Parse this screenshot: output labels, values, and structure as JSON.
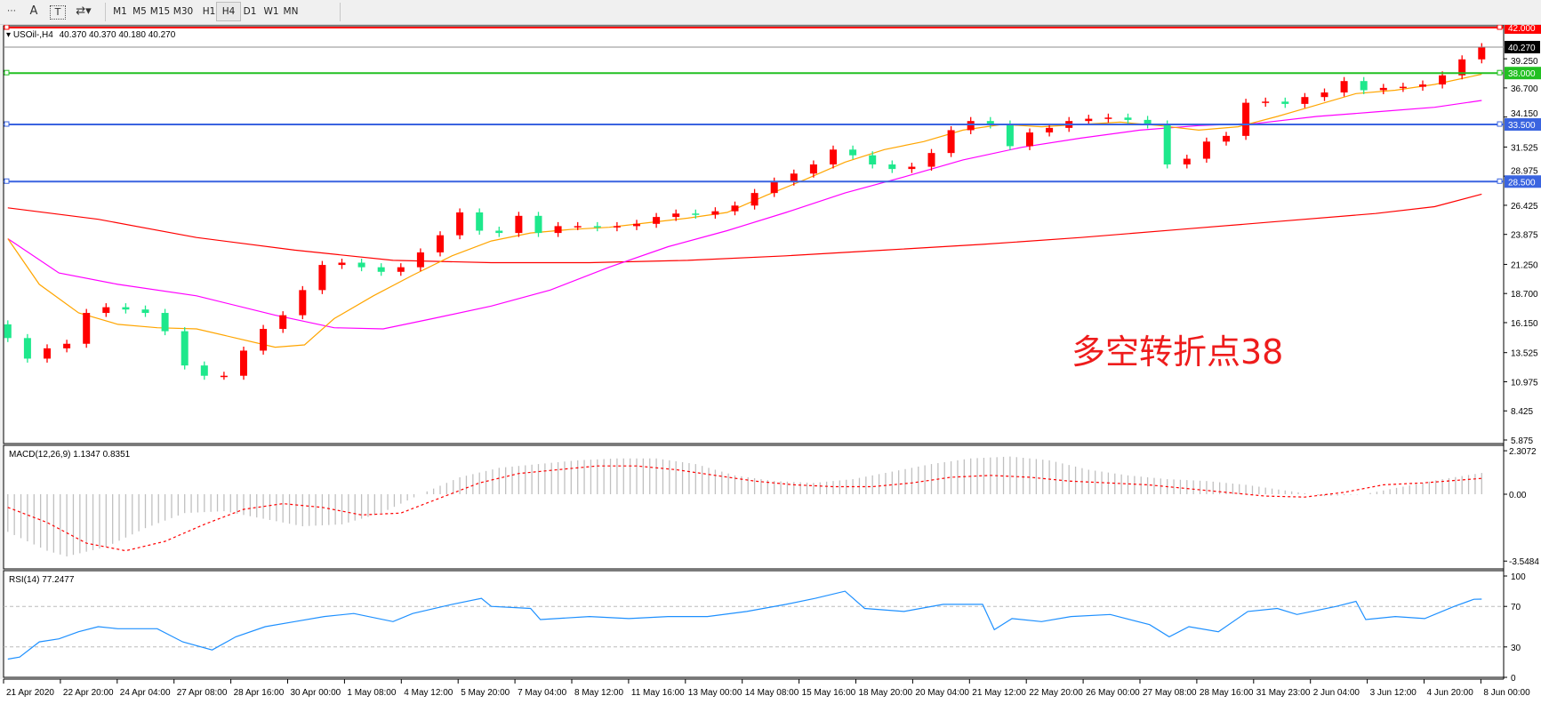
{
  "toolbar": {
    "icons": [
      "grid-lines-icon",
      "text-A-icon",
      "text-label-icon",
      "arrows-icon"
    ],
    "timeframes": [
      "M1",
      "M5",
      "M15",
      "M30",
      "H1",
      "H4",
      "D1",
      "W1",
      "MN"
    ],
    "active_timeframe": "H4"
  },
  "header": {
    "symbol_label": "USOil-,H4",
    "ohlc": "40.370 40.370 40.180 40.270"
  },
  "annotation": {
    "text": "多空转折点38",
    "color": "#ee1c1c"
  },
  "colors": {
    "bull": "#ff0000",
    "bear": "#1ee88c",
    "ma_fast": "#ffa500",
    "ma_mid": "#ff00ff",
    "ma_slow": "#ff0000",
    "rsi": "#1e90ff",
    "macd_hist": "#c0c0c0",
    "macd_signal": "#ff0000"
  },
  "price_axis": {
    "ticks": [
      "39.250",
      "36.700",
      "34.150",
      "31.525",
      "28.975",
      "26.425",
      "23.875",
      "21.250",
      "18.700",
      "16.150",
      "13.525",
      "10.975",
      "8.425",
      "5.875"
    ],
    "current_price": "40.270"
  },
  "levels": [
    {
      "price": 42.0,
      "label": "42.000",
      "color": "#ff0000"
    },
    {
      "price": 38.0,
      "label": "38.000",
      "color": "#22c022"
    },
    {
      "price": 33.5,
      "label": "33.500",
      "color": "#3a64e0"
    },
    {
      "price": 28.5,
      "label": "28.500",
      "color": "#3a64e0"
    }
  ],
  "macd": {
    "label": "MACD(12,26,9) 1.1347 0.8351",
    "ticks": [
      "2.3072",
      "0.00",
      "-3.5484"
    ]
  },
  "rsi": {
    "label": "RSI(14) 77.2477",
    "ticks": [
      "100",
      "70",
      "30",
      "0"
    ],
    "levels": [
      70,
      30
    ]
  },
  "time_axis": [
    "21 Apr 2020",
    "22 Apr 20:00",
    "24 Apr 04:00",
    "27 Apr 08:00",
    "28 Apr 16:00",
    "30 Apr 00:00",
    "1 May 08:00",
    "4 May 12:00",
    "5 May 20:00",
    "7 May 04:00",
    "8 May 12:00",
    "11 May 16:00",
    "13 May 00:00",
    "14 May 08:00",
    "15 May 16:00",
    "18 May 20:00",
    "20 May 04:00",
    "21 May 12:00",
    "22 May 20:00",
    "26 May 00:00",
    "27 May 08:00",
    "28 May 16:00",
    "31 May 23:00",
    "2 Jun 04:00",
    "3 Jun 12:00",
    "4 Jun 20:00",
    "8 Jun 00:00"
  ],
  "chart_data": {
    "type": "candlestick",
    "close": [
      14.8,
      13.0,
      13.9,
      14.3,
      17.0,
      17.5,
      17.3,
      17.0,
      15.4,
      12.4,
      11.5,
      11.5,
      13.7,
      15.6,
      16.8,
      19.0,
      21.2,
      21.4,
      21.0,
      20.6,
      21.0,
      22.3,
      23.8,
      25.8,
      24.2,
      24.0,
      25.5,
      24.0,
      24.6,
      24.6,
      24.5,
      24.6,
      24.8,
      25.4,
      25.7,
      25.6,
      25.9,
      26.4,
      27.5,
      28.5,
      29.2,
      30.0,
      31.3,
      30.8,
      30.0,
      29.6,
      29.8,
      31.0,
      33.0,
      33.8,
      33.5,
      31.6,
      32.8,
      33.2,
      33.8,
      34.0,
      34.1,
      33.9,
      33.5,
      30.0,
      30.5,
      32.0,
      32.5,
      35.4,
      35.5,
      35.3,
      35.9,
      36.3,
      37.3,
      36.5,
      36.7,
      36.8,
      37.0,
      37.8,
      39.2,
      40.27
    ],
    "ma_fast": [
      [
        0,
        23.5
      ],
      [
        1.6,
        19.5
      ],
      [
        3.6,
        17
      ],
      [
        5.6,
        16
      ],
      [
        7.6,
        15.7
      ],
      [
        9.6,
        15.6
      ],
      [
        11.6,
        14.8
      ],
      [
        13.6,
        14.0
      ],
      [
        15.1,
        14.2
      ],
      [
        16.6,
        16.5
      ],
      [
        18.6,
        18.5
      ],
      [
        20.6,
        20.3
      ],
      [
        22.6,
        22.0
      ],
      [
        24.6,
        23.3
      ],
      [
        26.6,
        24.0
      ],
      [
        28.6,
        24.3
      ],
      [
        30.6,
        24.5
      ],
      [
        32.6,
        24.9
      ],
      [
        34.6,
        25.3
      ],
      [
        36.6,
        25.8
      ],
      [
        38.6,
        27.3
      ],
      [
        40.6,
        28.7
      ],
      [
        42.6,
        30.2
      ],
      [
        44.6,
        31.3
      ],
      [
        46.6,
        32.0
      ],
      [
        48.6,
        33.0
      ],
      [
        50.6,
        33.5
      ],
      [
        52.6,
        33.3
      ],
      [
        54.6,
        33.5
      ],
      [
        56.6,
        33.7
      ],
      [
        58.6,
        33.4
      ],
      [
        60.6,
        33.0
      ],
      [
        62.6,
        33.3
      ],
      [
        64.6,
        34.2
      ],
      [
        66.6,
        35.2
      ],
      [
        68.6,
        36.2
      ],
      [
        70.6,
        36.5
      ],
      [
        72.6,
        37.0
      ],
      [
        75,
        37.9
      ]
    ],
    "ma_mid": [
      [
        0,
        23.5
      ],
      [
        2.6,
        20.5
      ],
      [
        5.6,
        19.5
      ],
      [
        9.6,
        18.5
      ],
      [
        13.6,
        16.8
      ],
      [
        16.6,
        15.7
      ],
      [
        19.1,
        15.6
      ],
      [
        21.6,
        16.5
      ],
      [
        24.6,
        17.6
      ],
      [
        27.6,
        19.0
      ],
      [
        30.6,
        21.0
      ],
      [
        33.6,
        22.8
      ],
      [
        36.6,
        24.2
      ],
      [
        39.6,
        25.8
      ],
      [
        42.6,
        27.5
      ],
      [
        45.6,
        28.9
      ],
      [
        48.6,
        30.4
      ],
      [
        51.6,
        31.5
      ],
      [
        54.6,
        32.3
      ],
      [
        57.6,
        33.0
      ],
      [
        60.6,
        33.4
      ],
      [
        63.6,
        33.6
      ],
      [
        66.6,
        34.2
      ],
      [
        69.6,
        34.6
      ],
      [
        72.6,
        35.0
      ],
      [
        75,
        35.6
      ]
    ],
    "ma_slow": [
      [
        0,
        26.2
      ],
      [
        4.6,
        25.2
      ],
      [
        9.6,
        23.6
      ],
      [
        14.6,
        22.5
      ],
      [
        19.6,
        21.6
      ],
      [
        24.6,
        21.4
      ],
      [
        29.6,
        21.4
      ],
      [
        34.6,
        21.6
      ],
      [
        39.6,
        22.0
      ],
      [
        44.6,
        22.5
      ],
      [
        49.6,
        23.0
      ],
      [
        54.6,
        23.6
      ],
      [
        59.6,
        24.3
      ],
      [
        64.6,
        25.0
      ],
      [
        69.6,
        25.7
      ],
      [
        72.6,
        26.3
      ],
      [
        75,
        27.4
      ]
    ],
    "macd_hist": [
      [
        0,
        -2.0
      ],
      [
        2,
        -3.0
      ],
      [
        3,
        -3.3
      ],
      [
        5,
        -2.8
      ],
      [
        7,
        -1.8
      ],
      [
        9,
        -1.0
      ],
      [
        11,
        -0.9
      ],
      [
        13,
        -1.3
      ],
      [
        15,
        -1.7
      ],
      [
        17,
        -1.6
      ],
      [
        19,
        -1.0
      ],
      [
        21,
        0.0
      ],
      [
        23,
        0.9
      ],
      [
        25,
        1.4
      ],
      [
        27,
        1.6
      ],
      [
        29,
        1.8
      ],
      [
        31,
        1.9
      ],
      [
        33,
        1.9
      ],
      [
        35,
        1.6
      ],
      [
        37,
        1.0
      ],
      [
        39,
        0.7
      ],
      [
        41,
        0.6
      ],
      [
        43,
        0.8
      ],
      [
        45,
        1.2
      ],
      [
        47,
        1.6
      ],
      [
        49,
        1.9
      ],
      [
        51,
        2.0
      ],
      [
        53,
        1.8
      ],
      [
        55,
        1.3
      ],
      [
        57,
        1.0
      ],
      [
        59,
        0.8
      ],
      [
        61,
        0.7
      ],
      [
        63,
        0.5
      ],
      [
        65,
        0.2
      ],
      [
        67,
        -0.1
      ],
      [
        69,
        0.0
      ],
      [
        71,
        0.4
      ],
      [
        73,
        0.8
      ],
      [
        75,
        1.13
      ]
    ],
    "macd_signal": [
      [
        0,
        -0.7
      ],
      [
        2,
        -1.5
      ],
      [
        4,
        -2.6
      ],
      [
        6,
        -3.0
      ],
      [
        8,
        -2.5
      ],
      [
        10,
        -1.6
      ],
      [
        12,
        -0.8
      ],
      [
        14,
        -0.5
      ],
      [
        16,
        -0.7
      ],
      [
        18,
        -1.1
      ],
      [
        20,
        -1.0
      ],
      [
        22,
        -0.2
      ],
      [
        24,
        0.6
      ],
      [
        26,
        1.1
      ],
      [
        28,
        1.3
      ],
      [
        30,
        1.5
      ],
      [
        32,
        1.5
      ],
      [
        34,
        1.3
      ],
      [
        36,
        1.0
      ],
      [
        38,
        0.7
      ],
      [
        40,
        0.5
      ],
      [
        42,
        0.4
      ],
      [
        44,
        0.4
      ],
      [
        46,
        0.6
      ],
      [
        48,
        0.9
      ],
      [
        50,
        1.0
      ],
      [
        52,
        0.9
      ],
      [
        54,
        0.7
      ],
      [
        56,
        0.6
      ],
      [
        58,
        0.5
      ],
      [
        60,
        0.3
      ],
      [
        62,
        0.1
      ],
      [
        64,
        -0.1
      ],
      [
        66,
        -0.15
      ],
      [
        68,
        0.1
      ],
      [
        70,
        0.5
      ],
      [
        72,
        0.6
      ],
      [
        75,
        0.84
      ]
    ],
    "rsi": [
      [
        0,
        18
      ],
      [
        0.6,
        20
      ],
      [
        1.6,
        35
      ],
      [
        2.6,
        38
      ],
      [
        3.6,
        45
      ],
      [
        4.6,
        50
      ],
      [
        5.6,
        48
      ],
      [
        7.6,
        48
      ],
      [
        8.9,
        35
      ],
      [
        10.4,
        27
      ],
      [
        11.6,
        40
      ],
      [
        13.1,
        50
      ],
      [
        14.6,
        55
      ],
      [
        16.1,
        60
      ],
      [
        17.6,
        63
      ],
      [
        19.6,
        55
      ],
      [
        20.6,
        63
      ],
      [
        22.6,
        72
      ],
      [
        24.1,
        78
      ],
      [
        24.6,
        70
      ],
      [
        26.6,
        68
      ],
      [
        27.1,
        57
      ],
      [
        29.6,
        60
      ],
      [
        31.6,
        58
      ],
      [
        33.6,
        60
      ],
      [
        35.6,
        60
      ],
      [
        37.6,
        65
      ],
      [
        39.6,
        72
      ],
      [
        41.1,
        78
      ],
      [
        42.6,
        85
      ],
      [
        43.6,
        68
      ],
      [
        45.6,
        65
      ],
      [
        47.6,
        72
      ],
      [
        49.6,
        72
      ],
      [
        50.2,
        47
      ],
      [
        51.1,
        58
      ],
      [
        52.6,
        55
      ],
      [
        54.1,
        60
      ],
      [
        56.1,
        62
      ],
      [
        58.1,
        52
      ],
      [
        59.1,
        40
      ],
      [
        60.1,
        50
      ],
      [
        61.6,
        45
      ],
      [
        63.1,
        65
      ],
      [
        64.6,
        68
      ],
      [
        65.6,
        62
      ],
      [
        67.6,
        70
      ],
      [
        68.6,
        75
      ],
      [
        69.1,
        57
      ],
      [
        70.6,
        60
      ],
      [
        72.1,
        58
      ],
      [
        73.6,
        70
      ],
      [
        74.6,
        77
      ],
      [
        75,
        77.2
      ]
    ],
    "ylim": [
      5.875,
      42.06
    ]
  }
}
